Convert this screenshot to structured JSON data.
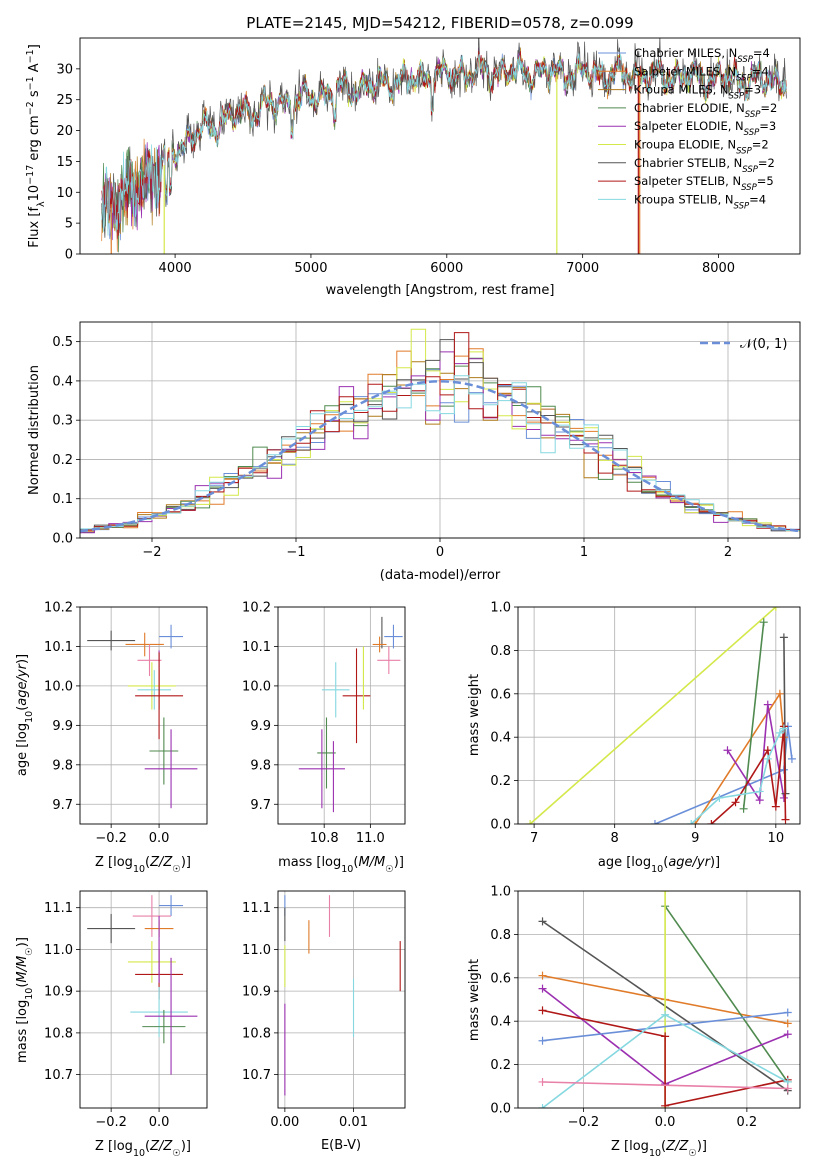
{
  "figure": {
    "title": "PLATE=2145, MJD=54212, FIBERID=0578, z=0.099"
  },
  "colors": {
    "Chabrier MILES": "#6a8fd8",
    "Salpeter MILES": "#e07b2a",
    "Kroupa MILES": "#b07a1a",
    "Chabrier ELODIE": "#4f8a4f",
    "Salpeter ELODIE": "#9b30b0",
    "Kroupa ELODIE": "#d4e84a",
    "Chabrier STELIB": "#555555",
    "Salpeter STELIB": "#b01818",
    "Kroupa STELIB": "#85d8e0",
    "pink": "#e880a8",
    "gauss": "#6a8fd8"
  },
  "chart_data": [
    {
      "id": "spectrum",
      "type": "line",
      "xlabel_prefix": "wavelength [Angstrom, rest frame]",
      "ylabel_parts": [
        "Flux [f",
        "λ",
        "10",
        "−17",
        " erg cm",
        "−2",
        " s",
        "−1",
        " A",
        "−1",
        "]"
      ],
      "xlim": [
        3300,
        8600
      ],
      "ylim": [
        0,
        35
      ],
      "xticks": [
        4000,
        5000,
        6000,
        7000,
        8000
      ],
      "yticks": [
        0,
        5,
        10,
        15,
        20,
        25,
        30
      ],
      "grid": false,
      "legend_placement": "upper right",
      "continuum": {
        "x": [
          3450,
          3600,
          3800,
          3950,
          4000,
          4200,
          4500,
          4800,
          5000,
          5200,
          5500,
          5800,
          6000,
          6300,
          6600,
          7000,
          7300,
          7600,
          8000,
          8300,
          8500
        ],
        "y": [
          7,
          9,
          12,
          15,
          17,
          20,
          23,
          24.5,
          25.5,
          26.5,
          27.5,
          28.5,
          29,
          29.5,
          29.5,
          29.3,
          29,
          28.8,
          28.5,
          28.2,
          28
        ]
      },
      "legend": [
        {
          "label": "Chabrier MILES, N",
          "sub": "SSP",
          "suffix": "=4"
        },
        {
          "label": "Salpeter MILES, N",
          "sub": "SSP",
          "suffix": "=4"
        },
        {
          "label": "Kroupa MILES, N",
          "sub": "SSP",
          "suffix": "=3"
        },
        {
          "label": "Chabrier ELODIE, N",
          "sub": "SSP",
          "suffix": "=2"
        },
        {
          "label": "Salpeter ELODIE, N",
          "sub": "SSP",
          "suffix": "=3"
        },
        {
          "label": "Kroupa ELODIE, N",
          "sub": "SSP",
          "suffix": "=2"
        },
        {
          "label": "Chabrier STELIB, N",
          "sub": "SSP",
          "suffix": "=2"
        },
        {
          "label": "Salpeter STELIB, N",
          "sub": "SSP",
          "suffix": "=5"
        },
        {
          "label": "Kroupa STELIB, N",
          "sub": "SSP",
          "suffix": "=4"
        }
      ]
    },
    {
      "id": "residuals",
      "type": "histogram",
      "xlabel": "(data-model)/error",
      "ylabel": "Normed distribution",
      "xlim": [
        -2.5,
        2.5
      ],
      "ylim": [
        0,
        0.55
      ],
      "xticks": [
        -2,
        -1,
        0,
        1,
        2
      ],
      "xtick_labels": [
        "−2",
        "−1",
        "0",
        "1",
        "2"
      ],
      "yticks": [
        0.0,
        0.1,
        0.2,
        0.3,
        0.4,
        0.5
      ],
      "ytick_labels": [
        "0.0",
        "0.1",
        "0.2",
        "0.3",
        "0.4",
        "0.5"
      ],
      "grid": true,
      "legend_label": "𝒩(0, 1)",
      "legend_placement": "upper right",
      "bin_width": 0.1
    },
    {
      "id": "age_vs_Z",
      "type": "errorbar",
      "xlabel": "Z [log10(Z/Z☉)]",
      "ylabel": "age [log10(age/yr)]",
      "xlim": [
        -0.33,
        0.2
      ],
      "ylim": [
        9.65,
        10.2
      ],
      "xticks": [
        -0.2,
        0.0
      ],
      "xtick_labels": [
        "−0.2",
        "0.0"
      ],
      "yticks": [
        9.7,
        9.8,
        9.9,
        10.0,
        10.1,
        10.2
      ],
      "ytick_labels": [
        "9.7",
        "9.8",
        "9.9",
        "10.0",
        "10.1",
        "10.2"
      ],
      "grid": true,
      "points": [
        {
          "c": "Chabrier STELIB",
          "x": -0.2,
          "xe": 0.1,
          "y": 10.115,
          "ye": 0.025
        },
        {
          "c": "Chabrier MILES",
          "x": 0.05,
          "xe": 0.05,
          "y": 10.125,
          "ye": 0.03
        },
        {
          "c": "Salpeter MILES",
          "x": -0.06,
          "xe": 0.08,
          "y": 10.105,
          "ye": 0.03
        },
        {
          "c": "pink",
          "x": -0.04,
          "xe": 0.05,
          "y": 10.065,
          "ye": 0.04
        },
        {
          "c": "Salpeter ELODIE",
          "x": 0.0,
          "xe": 0.0,
          "y": 10.03,
          "ye": 0.06
        },
        {
          "c": "Kroupa ELODIE",
          "x": -0.03,
          "xe": 0.1,
          "y": 10.0,
          "ye": 0.06
        },
        {
          "c": "Kroupa STELIB",
          "x": -0.02,
          "xe": 0.07,
          "y": 9.99,
          "ye": 0.05
        },
        {
          "c": "Kroupa MILES",
          "x": 0.0,
          "xe": 0.0,
          "y": 9.99,
          "ye": 0.05
        },
        {
          "c": "Salpeter STELIB",
          "x": 0.0,
          "xe": 0.1,
          "y": 9.975,
          "ye": 0.11
        },
        {
          "c": "Chabrier ELODIE",
          "x": 0.02,
          "xe": 0.06,
          "y": 9.835,
          "ye": 0.085
        },
        {
          "c": "Salpeter ELODIE",
          "x": 0.05,
          "xe": 0.11,
          "y": 9.79,
          "ye": 0.1
        }
      ]
    },
    {
      "id": "age_vs_mass",
      "type": "errorbar",
      "xlabel": "mass [log10(M/M☉)]",
      "xlim": [
        10.6,
        11.15
      ],
      "ylim": [
        9.65,
        10.2
      ],
      "xticks": [
        10.8,
        11.0
      ],
      "xtick_labels": [
        "10.8",
        "11.0"
      ],
      "yticks": [
        9.7,
        9.8,
        9.9,
        10.0,
        10.1,
        10.2
      ],
      "ytick_labels": [
        "9.7",
        "9.8",
        "9.9",
        "10.0",
        "10.1",
        "10.2"
      ],
      "grid": true,
      "points": [
        {
          "c": "Chabrier STELIB",
          "x": 11.05,
          "xe": 0.0,
          "y": 10.135,
          "ye": 0.04
        },
        {
          "c": "Chabrier MILES",
          "x": 11.1,
          "xe": 0.04,
          "y": 10.125,
          "ye": 0.03
        },
        {
          "c": "Salpeter MILES",
          "x": 11.04,
          "xe": 0.03,
          "y": 10.105,
          "ye": 0.02
        },
        {
          "c": "pink",
          "x": 11.08,
          "xe": 0.05,
          "y": 10.065,
          "ye": 0.035
        },
        {
          "c": "Salpeter STELIB",
          "x": 10.94,
          "xe": 0.06,
          "y": 9.975,
          "ye": 0.12
        },
        {
          "c": "Kroupa ELODIE",
          "x": 10.97,
          "xe": 0.0,
          "y": 10.02,
          "ye": 0.08
        },
        {
          "c": "Kroupa STELIB",
          "x": 10.85,
          "xe": 0.06,
          "y": 9.99,
          "ye": 0.07
        },
        {
          "c": "Chabrier ELODIE",
          "x": 10.81,
          "xe": 0.04,
          "y": 9.83,
          "ye": 0.09
        },
        {
          "c": "Salpeter ELODIE",
          "x": 10.79,
          "xe": 0.1,
          "y": 9.79,
          "ye": 0.1
        },
        {
          "c": "Salpeter ELODIE",
          "x": 10.84,
          "xe": 0.0,
          "y": 9.77,
          "ye": 0.09
        }
      ]
    },
    {
      "id": "massweight_vs_age",
      "type": "line",
      "xlabel": "age [log10(age/yr)]",
      "ylabel": "mass weight",
      "xlim": [
        6.8,
        10.3
      ],
      "ylim": [
        0,
        1
      ],
      "xticks": [
        7,
        8,
        9,
        10
      ],
      "xtick_labels": [
        "7",
        "8",
        "9",
        "10"
      ],
      "yticks": [
        0.0,
        0.2,
        0.4,
        0.6,
        0.8,
        1.0
      ],
      "ytick_labels": [
        "0.0",
        "0.2",
        "0.4",
        "0.6",
        "0.8",
        "1.0"
      ],
      "grid": true,
      "series": [
        {
          "c": "Kroupa ELODIE",
          "x": [
            6.95,
            10.0
          ],
          "y": [
            0.0,
            1.0
          ]
        },
        {
          "c": "Chabrier MILES",
          "x": [
            8.5,
            10.1,
            10.15,
            10.2
          ],
          "y": [
            0.0,
            0.25,
            0.45,
            0.3
          ]
        },
        {
          "c": "Salpeter MILES",
          "x": [
            9.0,
            10.05,
            10.1
          ],
          "y": [
            0.0,
            0.6,
            0.4
          ]
        },
        {
          "c": "Chabrier ELODIE",
          "x": [
            9.6,
            9.85
          ],
          "y": [
            0.07,
            0.93
          ]
        },
        {
          "c": "Salpeter ELODIE",
          "x": [
            9.4,
            9.8,
            9.9,
            10.1
          ],
          "y": [
            0.34,
            0.11,
            0.55,
            0.12
          ]
        },
        {
          "c": "Chabrier STELIB",
          "x": [
            10.1,
            10.12
          ],
          "y": [
            0.86,
            0.14
          ]
        },
        {
          "c": "Salpeter STELIB",
          "x": [
            9.2,
            9.5,
            9.9,
            10.0,
            10.1,
            10.12
          ],
          "y": [
            0.0,
            0.1,
            0.34,
            0.08,
            0.45,
            0.02
          ]
        },
        {
          "c": "Kroupa STELIB",
          "x": [
            8.95,
            9.3,
            9.8,
            9.9,
            10.05,
            10.1
          ],
          "y": [
            0.0,
            0.12,
            0.15,
            0.3,
            0.42,
            0.44
          ]
        }
      ]
    },
    {
      "id": "mass_vs_Z",
      "type": "errorbar",
      "xlabel": "Z [log10(Z/Z☉)]",
      "ylabel": "mass [log10(M/M☉)]",
      "xlim": [
        -0.33,
        0.2
      ],
      "ylim": [
        10.62,
        11.14
      ],
      "xticks": [
        -0.2,
        0.0
      ],
      "xtick_labels": [
        "−0.2",
        "0.0"
      ],
      "yticks": [
        10.7,
        10.8,
        10.9,
        11.0,
        11.1
      ],
      "ytick_labels": [
        "10.7",
        "10.8",
        "10.9",
        "11.0",
        "11.1"
      ],
      "grid": true,
      "points": [
        {
          "c": "Chabrier STELIB",
          "x": -0.2,
          "xe": 0.1,
          "y": 11.05,
          "ye": 0.035
        },
        {
          "c": "Chabrier MILES",
          "x": 0.05,
          "xe": 0.05,
          "y": 11.105,
          "ye": 0.025
        },
        {
          "c": "pink",
          "x": -0.03,
          "xe": 0.08,
          "y": 11.08,
          "ye": 0.05
        },
        {
          "c": "Salpeter MILES",
          "x": 0.0,
          "xe": 0.06,
          "y": 11.05,
          "ye": 0.02
        },
        {
          "c": "Kroupa ELODIE",
          "x": -0.03,
          "xe": 0.1,
          "y": 10.97,
          "ye": 0.05
        },
        {
          "c": "Salpeter STELIB",
          "x": 0.0,
          "xe": 0.1,
          "y": 10.94,
          "ye": 0.06
        },
        {
          "c": "Kroupa STELIB",
          "x": 0.0,
          "xe": 0.12,
          "y": 10.85,
          "ye": 0.06
        },
        {
          "c": "Chabrier ELODIE",
          "x": 0.02,
          "xe": 0.09,
          "y": 10.815,
          "ye": 0.04
        },
        {
          "c": "Salpeter ELODIE",
          "x": 0.05,
          "xe": 0.11,
          "y": 10.84,
          "ye": 0.14
        },
        {
          "c": "Salpeter ELODIE",
          "x": 0.0,
          "xe": 0.0,
          "y": 11.0,
          "ye": 0.08
        }
      ]
    },
    {
      "id": "mass_vs_ebv",
      "type": "errorbar",
      "xlabel": "E(B-V)",
      "xlim": [
        -0.001,
        0.0175
      ],
      "ylim": [
        10.62,
        11.14
      ],
      "xticks": [
        0.0,
        0.01
      ],
      "xtick_labels": [
        "0.00",
        "0.01"
      ],
      "yticks": [
        10.7,
        10.8,
        10.9,
        11.0,
        11.1
      ],
      "ytick_labels": [
        "10.7",
        "10.8",
        "10.9",
        "11.0",
        "11.1"
      ],
      "grid": true,
      "points": [
        {
          "c": "Chabrier MILES",
          "x": 0.0,
          "xe": 0.0,
          "y": 11.105,
          "ye": 0.025
        },
        {
          "c": "Chabrier STELIB",
          "x": 0.0,
          "xe": 0.0,
          "y": 11.06,
          "ye": 0.04
        },
        {
          "c": "Kroupa ELODIE",
          "x": 0.0,
          "xe": 0.0,
          "y": 10.96,
          "ye": 0.05
        },
        {
          "c": "Salpeter ELODIE",
          "x": 0.0,
          "xe": 0.0,
          "y": 10.76,
          "ye": 0.11
        },
        {
          "c": "Salpeter MILES",
          "x": 0.0035,
          "xe": 0.0,
          "y": 11.03,
          "ye": 0.04
        },
        {
          "c": "pink",
          "x": 0.0065,
          "xe": 0.0,
          "y": 11.08,
          "ye": 0.05
        },
        {
          "c": "Kroupa STELIB",
          "x": 0.01,
          "xe": 0.0,
          "y": 10.86,
          "ye": 0.07
        },
        {
          "c": "Salpeter STELIB",
          "x": 0.0168,
          "xe": 0.0,
          "y": 10.96,
          "ye": 0.06
        }
      ]
    },
    {
      "id": "massweight_vs_Z",
      "type": "line",
      "xlabel": "Z [log10(Z/Z☉)]",
      "ylabel": "mass weight",
      "xlim": [
        -0.36,
        0.33
      ],
      "ylim": [
        0,
        1
      ],
      "xticks": [
        -0.2,
        0.0,
        0.2
      ],
      "xtick_labels": [
        "−0.2",
        "0.0",
        "0.2"
      ],
      "yticks": [
        0.0,
        0.2,
        0.4,
        0.6,
        0.8,
        1.0
      ],
      "ytick_labels": [
        "0.0",
        "0.2",
        "0.4",
        "0.6",
        "0.8",
        "1.0"
      ],
      "grid": true,
      "series": [
        {
          "c": "Chabrier STELIB",
          "x": [
            -0.3,
            0.3
          ],
          "y": [
            0.86,
            0.08
          ]
        },
        {
          "c": "Salpeter MILES",
          "x": [
            -0.3,
            0.0,
            0.3
          ],
          "y": [
            0.61,
            0.5,
            0.39
          ]
        },
        {
          "c": "Chabrier ELODIE",
          "x": [
            0.0,
            0.3
          ],
          "y": [
            0.93,
            0.12
          ]
        },
        {
          "c": "Kroupa ELODIE",
          "x": [
            0.0,
            0.0
          ],
          "y": [
            1.0,
            0.0
          ]
        },
        {
          "c": "Salpeter ELODIE",
          "x": [
            -0.3,
            0.0,
            0.3
          ],
          "y": [
            0.55,
            0.11,
            0.34
          ]
        },
        {
          "c": "Chabrier MILES",
          "x": [
            -0.3,
            0.3
          ],
          "y": [
            0.31,
            0.44
          ]
        },
        {
          "c": "Salpeter STELIB",
          "x": [
            -0.3,
            0.0,
            0.0,
            0.3
          ],
          "y": [
            0.45,
            0.33,
            0.01,
            0.13
          ]
        },
        {
          "c": "Kroupa STELIB",
          "x": [
            -0.3,
            0.0,
            0.3
          ],
          "y": [
            0.0,
            0.43,
            0.12
          ]
        },
        {
          "c": "pink",
          "x": [
            -0.3,
            0.3
          ],
          "y": [
            0.12,
            0.09
          ]
        }
      ]
    }
  ]
}
